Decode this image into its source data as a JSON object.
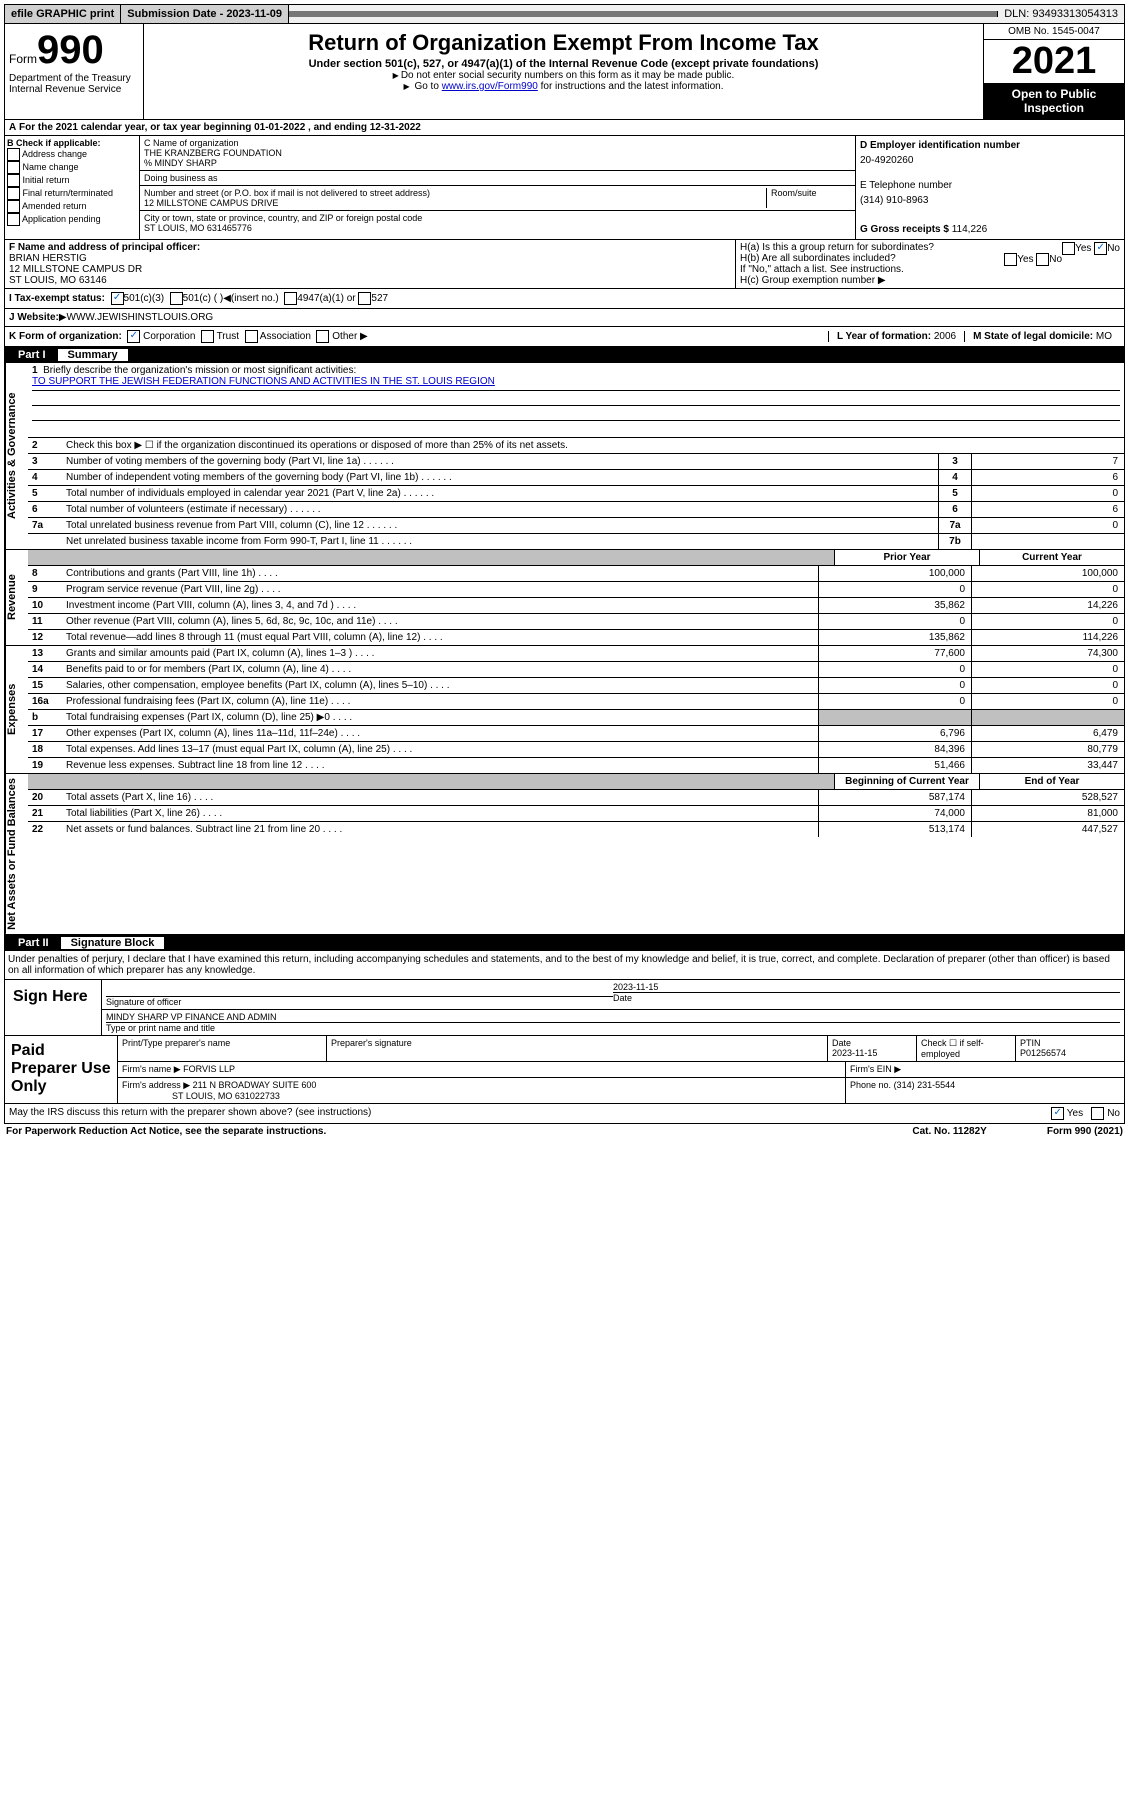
{
  "topbar": {
    "efile": "efile GRAPHIC print",
    "submission_label": "Submission Date - 2023-11-09",
    "dln": "DLN: 93493313054313"
  },
  "header": {
    "form": "Form",
    "form_num": "990",
    "dept": "Department of the Treasury Internal Revenue Service",
    "title": "Return of Organization Exempt From Income Tax",
    "subtitle": "Under section 501(c), 527, or 4947(a)(1) of the Internal Revenue Code (except private foundations)",
    "instr1": "Do not enter social security numbers on this form as it may be made public.",
    "instr2_pre": "Go to ",
    "instr2_link": "www.irs.gov/Form990",
    "instr2_post": " for instructions and the latest information.",
    "omb": "OMB No. 1545-0047",
    "year": "2021",
    "open": "Open to Public Inspection"
  },
  "period": "For the 2021 calendar year, or tax year beginning 01-01-2022   , and ending 12-31-2022",
  "section_b": {
    "label": "B Check if applicable:",
    "opts": [
      "Address change",
      "Name change",
      "Initial return",
      "Final return/terminated",
      "Amended return",
      "Application pending"
    ]
  },
  "section_c": {
    "name_label": "C Name of organization",
    "name": "THE KRANZBERG FOUNDATION",
    "care_of": "% MINDY SHARP",
    "dba_label": "Doing business as",
    "dba": "",
    "street_label": "Number and street (or P.O. box if mail is not delivered to street address)",
    "room_label": "Room/suite",
    "street": "12 MILLSTONE CAMPUS DRIVE",
    "city_label": "City or town, state or province, country, and ZIP or foreign postal code",
    "city": "ST LOUIS, MO  631465776"
  },
  "section_d": {
    "ein_label": "D Employer identification number",
    "ein": "20-4920260",
    "phone_label": "E Telephone number",
    "phone": "(314) 910-8963",
    "gross_label": "G Gross receipts $",
    "gross": "114,226"
  },
  "section_f": {
    "label": "F Name and address of principal officer:",
    "name": "BRIAN HERSTIG",
    "addr1": "12 MILLSTONE CAMPUS DR",
    "addr2": "ST LOUIS, MO  63146"
  },
  "section_h": {
    "ha": "H(a)  Is this a group return for subordinates?",
    "hb": "H(b)  Are all subordinates included?",
    "hb_note": "If \"No,\" attach a list. See instructions.",
    "hc": "H(c)  Group exemption number",
    "yes": "Yes",
    "no": "No"
  },
  "section_i": {
    "label": "I  Tax-exempt status:",
    "opts": [
      "501(c)(3)",
      "501(c) (  )",
      "(insert no.)",
      "4947(a)(1) or",
      "527"
    ]
  },
  "section_j": {
    "label": "J  Website:",
    "val": "WWW.JEWISHINSTLOUIS.ORG"
  },
  "section_k": {
    "label": "K Form of organization:",
    "opts": [
      "Corporation",
      "Trust",
      "Association",
      "Other"
    ],
    "year_label": "L Year of formation:",
    "year": "2006",
    "state_label": "M State of legal domicile:",
    "state": "MO"
  },
  "part1": {
    "label": "Part I",
    "title": "Summary",
    "tabs": {
      "gov": "Activities & Governance",
      "rev": "Revenue",
      "exp": "Expenses",
      "net": "Net Assets or Fund Balances"
    },
    "mission_label": "Briefly describe the organization's mission or most significant activities:",
    "mission": "TO SUPPORT THE JEWISH FEDERATION FUNCTIONS AND ACTIVITIES IN THE ST. LOUIS REGION",
    "line2": "Check this box ▶ ☐  if the organization discontinued its operations or disposed of more than 25% of its net assets.",
    "rows_gov": [
      {
        "n": "3",
        "d": "Number of voting members of the governing body (Part VI, line 1a)",
        "b": "3",
        "v": "7"
      },
      {
        "n": "4",
        "d": "Number of independent voting members of the governing body (Part VI, line 1b)",
        "b": "4",
        "v": "6"
      },
      {
        "n": "5",
        "d": "Total number of individuals employed in calendar year 2021 (Part V, line 2a)",
        "b": "5",
        "v": "0"
      },
      {
        "n": "6",
        "d": "Total number of volunteers (estimate if necessary)",
        "b": "6",
        "v": "6"
      },
      {
        "n": "7a",
        "d": "Total unrelated business revenue from Part VIII, column (C), line 12",
        "b": "7a",
        "v": "0"
      },
      {
        "n": "",
        "d": "Net unrelated business taxable income from Form 990-T, Part I, line 11",
        "b": "7b",
        "v": ""
      }
    ],
    "col_prior": "Prior Year",
    "col_current": "Current Year",
    "col_begin": "Beginning of Current Year",
    "col_end": "End of Year",
    "rows_rev": [
      {
        "n": "8",
        "d": "Contributions and grants (Part VIII, line 1h)",
        "p": "100,000",
        "c": "100,000"
      },
      {
        "n": "9",
        "d": "Program service revenue (Part VIII, line 2g)",
        "p": "0",
        "c": "0"
      },
      {
        "n": "10",
        "d": "Investment income (Part VIII, column (A), lines 3, 4, and 7d )",
        "p": "35,862",
        "c": "14,226"
      },
      {
        "n": "11",
        "d": "Other revenue (Part VIII, column (A), lines 5, 6d, 8c, 9c, 10c, and 11e)",
        "p": "0",
        "c": "0"
      },
      {
        "n": "12",
        "d": "Total revenue—add lines 8 through 11 (must equal Part VIII, column (A), line 12)",
        "p": "135,862",
        "c": "114,226"
      }
    ],
    "rows_exp": [
      {
        "n": "13",
        "d": "Grants and similar amounts paid (Part IX, column (A), lines 1–3 )",
        "p": "77,600",
        "c": "74,300"
      },
      {
        "n": "14",
        "d": "Benefits paid to or for members (Part IX, column (A), line 4)",
        "p": "0",
        "c": "0"
      },
      {
        "n": "15",
        "d": "Salaries, other compensation, employee benefits (Part IX, column (A), lines 5–10)",
        "p": "0",
        "c": "0"
      },
      {
        "n": "16a",
        "d": "Professional fundraising fees (Part IX, column (A), line 11e)",
        "p": "0",
        "c": "0"
      },
      {
        "n": "b",
        "d": "Total fundraising expenses (Part IX, column (D), line 25) ▶0",
        "p": "",
        "c": "",
        "grey": true
      },
      {
        "n": "17",
        "d": "Other expenses (Part IX, column (A), lines 11a–11d, 11f–24e)",
        "p": "6,796",
        "c": "6,479"
      },
      {
        "n": "18",
        "d": "Total expenses. Add lines 13–17 (must equal Part IX, column (A), line 25)",
        "p": "84,396",
        "c": "80,779"
      },
      {
        "n": "19",
        "d": "Revenue less expenses. Subtract line 18 from line 12",
        "p": "51,466",
        "c": "33,447"
      }
    ],
    "rows_net": [
      {
        "n": "20",
        "d": "Total assets (Part X, line 16)",
        "p": "587,174",
        "c": "528,527"
      },
      {
        "n": "21",
        "d": "Total liabilities (Part X, line 26)",
        "p": "74,000",
        "c": "81,000"
      },
      {
        "n": "22",
        "d": "Net assets or fund balances. Subtract line 21 from line 20",
        "p": "513,174",
        "c": "447,527"
      }
    ]
  },
  "part2": {
    "label": "Part II",
    "title": "Signature Block",
    "declaration": "Under penalties of perjury, I declare that I have examined this return, including accompanying schedules and statements, and to the best of my knowledge and belief, it is true, correct, and complete. Declaration of preparer (other than officer) is based on all information of which preparer has any knowledge.",
    "sign_here": "Sign Here",
    "sig_officer": "Signature of officer",
    "sig_date": "2023-11-15",
    "date_label": "Date",
    "name_title": "MINDY SHARP  VP FINANCE AND ADMIN",
    "type_label": "Type or print name and title",
    "paid_label": "Paid Preparer Use Only",
    "prep_name_label": "Print/Type preparer's name",
    "prep_name": "",
    "prep_sig_label": "Preparer's signature",
    "prep_date_label": "Date",
    "prep_date": "2023-11-15",
    "check_label": "Check ☐ if self-employed",
    "ptin_label": "PTIN",
    "ptin": "P01256574",
    "firm_name_label": "Firm's name    ▶",
    "firm_name": "FORVIS LLP",
    "firm_ein_label": "Firm's EIN ▶",
    "firm_addr_label": "Firm's address ▶",
    "firm_addr1": "211 N BROADWAY SUITE 600",
    "firm_addr2": "ST LOUIS, MO  631022733",
    "firm_phone_label": "Phone no.",
    "firm_phone": "(314) 231-5544",
    "discuss": "May the IRS discuss this return with the preparer shown above? (see instructions)",
    "yes": "Yes",
    "no": "No"
  },
  "footer": {
    "paperwork": "For Paperwork Reduction Act Notice, see the separate instructions.",
    "cat": "Cat. No. 11282Y",
    "form": "Form 990 (2021)"
  }
}
